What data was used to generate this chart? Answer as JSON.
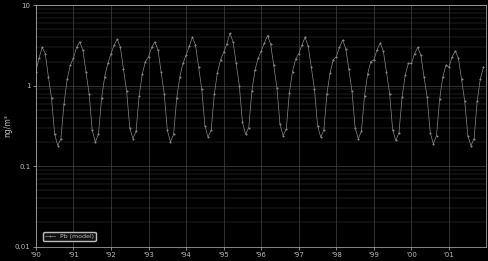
{
  "ylabel": "ng/m³",
  "xlim": [
    1990,
    2001.99
  ],
  "ylim_log": [
    0.01,
    10
  ],
  "yticks": [
    0.01,
    0.1,
    1,
    10
  ],
  "ytick_labels": [
    "0.01",
    "0.1",
    "1",
    "10"
  ],
  "xticks": [
    1990,
    1991,
    1992,
    1993,
    1994,
    1995,
    1996,
    1997,
    1998,
    1999,
    2000,
    2001
  ],
  "xtick_labels": [
    "90",
    "91",
    "92",
    "93",
    "94",
    "95",
    "96",
    "97",
    "98",
    "99",
    "00",
    "01"
  ],
  "legend_label": "Pb (model)",
  "line_color": "#888888",
  "marker": "o",
  "marker_size": 1.2,
  "background_color": "#000000",
  "grid_color": "#444444",
  "text_color": "#bbbbbb",
  "data_x": [
    1990.0,
    1990.083,
    1990.167,
    1990.25,
    1990.333,
    1990.417,
    1990.5,
    1990.583,
    1990.667,
    1990.75,
    1990.833,
    1990.917,
    1991.0,
    1991.083,
    1991.167,
    1991.25,
    1991.333,
    1991.417,
    1991.5,
    1991.583,
    1991.667,
    1991.75,
    1991.833,
    1991.917,
    1992.0,
    1992.083,
    1992.167,
    1992.25,
    1992.333,
    1992.417,
    1992.5,
    1992.583,
    1992.667,
    1992.75,
    1992.833,
    1992.917,
    1993.0,
    1993.083,
    1993.167,
    1993.25,
    1993.333,
    1993.417,
    1993.5,
    1993.583,
    1993.667,
    1993.75,
    1993.833,
    1993.917,
    1994.0,
    1994.083,
    1994.167,
    1994.25,
    1994.333,
    1994.417,
    1994.5,
    1994.583,
    1994.667,
    1994.75,
    1994.833,
    1994.917,
    1995.0,
    1995.083,
    1995.167,
    1995.25,
    1995.333,
    1995.417,
    1995.5,
    1995.583,
    1995.667,
    1995.75,
    1995.833,
    1995.917,
    1996.0,
    1996.083,
    1996.167,
    1996.25,
    1996.333,
    1996.417,
    1996.5,
    1996.583,
    1996.667,
    1996.75,
    1996.833,
    1996.917,
    1997.0,
    1997.083,
    1997.167,
    1997.25,
    1997.333,
    1997.417,
    1997.5,
    1997.583,
    1997.667,
    1997.75,
    1997.833,
    1997.917,
    1998.0,
    1998.083,
    1998.167,
    1998.25,
    1998.333,
    1998.417,
    1998.5,
    1998.583,
    1998.667,
    1998.75,
    1998.833,
    1998.917,
    1999.0,
    1999.083,
    1999.167,
    1999.25,
    1999.333,
    1999.417,
    1999.5,
    1999.583,
    1999.667,
    1999.75,
    1999.833,
    1999.917,
    2000.0,
    2000.083,
    2000.167,
    2000.25,
    2000.333,
    2000.417,
    2000.5,
    2000.583,
    2000.667,
    2000.75,
    2000.833,
    2000.917,
    2001.0,
    2001.083,
    2001.167,
    2001.25,
    2001.333,
    2001.417,
    2001.5,
    2001.583,
    2001.667,
    2001.75,
    2001.833,
    2001.917
  ],
  "data_y": [
    1.5,
    2.2,
    3.0,
    2.5,
    1.3,
    0.7,
    0.25,
    0.18,
    0.22,
    0.6,
    1.2,
    1.8,
    2.2,
    3.0,
    3.5,
    2.8,
    1.5,
    0.8,
    0.28,
    0.2,
    0.25,
    0.7,
    1.3,
    1.9,
    2.5,
    3.2,
    3.8,
    3.0,
    1.6,
    0.85,
    0.3,
    0.22,
    0.27,
    0.75,
    1.4,
    2.0,
    2.3,
    3.0,
    3.5,
    2.8,
    1.5,
    0.8,
    0.28,
    0.2,
    0.25,
    0.7,
    1.3,
    1.9,
    2.4,
    3.1,
    4.0,
    3.2,
    1.7,
    0.9,
    0.32,
    0.23,
    0.28,
    0.78,
    1.45,
    2.1,
    2.6,
    3.3,
    4.5,
    3.5,
    1.9,
    1.0,
    0.35,
    0.25,
    0.3,
    0.85,
    1.55,
    2.2,
    2.7,
    3.4,
    4.2,
    3.3,
    1.8,
    0.95,
    0.33,
    0.24,
    0.29,
    0.82,
    1.5,
    2.15,
    2.5,
    3.2,
    4.0,
    3.1,
    1.7,
    0.9,
    0.32,
    0.23,
    0.28,
    0.8,
    1.45,
    2.1,
    2.3,
    3.0,
    3.7,
    2.9,
    1.6,
    0.85,
    0.3,
    0.22,
    0.27,
    0.75,
    1.4,
    2.0,
    2.1,
    2.8,
    3.4,
    2.7,
    1.5,
    0.8,
    0.28,
    0.21,
    0.26,
    0.72,
    1.35,
    1.9,
    1.9,
    2.5,
    3.0,
    2.4,
    1.3,
    0.72,
    0.26,
    0.19,
    0.24,
    0.68,
    1.28,
    1.8,
    1.7,
    2.3,
    2.7,
    2.2,
    1.2,
    0.65,
    0.24,
    0.18,
    0.22,
    0.65,
    1.22,
    1.7
  ]
}
